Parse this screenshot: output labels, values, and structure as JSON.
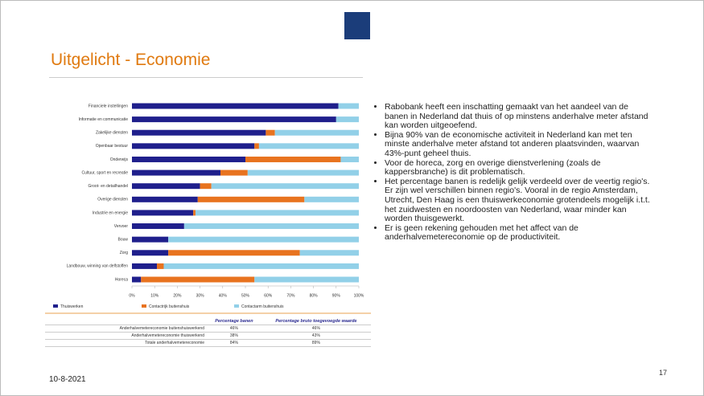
{
  "header": {
    "title": "Uitgelicht - Economie"
  },
  "chart_data": {
    "type": "bar",
    "orientation": "horizontal",
    "stacked": true,
    "categories": [
      "Financiele instellingen",
      "Informatie en communicatie",
      "Zakelijke diensten",
      "Openbaar bestuur",
      "Onderwijs",
      "Cultuur, sport en recreatie",
      "Groot- en detailhandel",
      "Overige diensten",
      "Industrie en energie",
      "Vervoer",
      "Bouw",
      "Zorg",
      "Landbouw, winning van delfstoffen",
      "Horeca"
    ],
    "series": [
      {
        "name": "Thuiswerken",
        "color": "#1f1f8c",
        "values": [
          91,
          90,
          59,
          54,
          50,
          39,
          30,
          29,
          27,
          23,
          16,
          16,
          11,
          4
        ]
      },
      {
        "name": "Contactrijk buitenshuis",
        "color": "#e8731f",
        "values": [
          0,
          0,
          4,
          2,
          42,
          12,
          5,
          47,
          1,
          0,
          0,
          58,
          3,
          50
        ]
      },
      {
        "name": "Contactarm buitenshuis",
        "color": "#92d0e8",
        "values": [
          9,
          10,
          37,
          44,
          8,
          49,
          65,
          24,
          72,
          77,
          84,
          26,
          86,
          46
        ]
      }
    ],
    "xlim": [
      0,
      100
    ],
    "xticks": [
      {
        "value": 0,
        "label": "0%"
      },
      {
        "value": 10,
        "label": "10%"
      },
      {
        "value": 20,
        "label": "20%"
      },
      {
        "value": 30,
        "label": "30%"
      },
      {
        "value": 40,
        "label": "40%"
      },
      {
        "value": 50,
        "label": "50%"
      },
      {
        "value": 60,
        "label": "60%"
      },
      {
        "value": 70,
        "label": "70%"
      },
      {
        "value": 80,
        "label": "80%"
      },
      {
        "value": 90,
        "label": "90%"
      },
      {
        "value": 100,
        "label": "100%"
      }
    ],
    "legend": "bottom"
  },
  "table": {
    "header": [
      "Percentage banen",
      "Percentage bruto toegevoegde waarde"
    ],
    "rows": [
      [
        "Anderhalvemetereconomie buitenshuiswerkend",
        "46%",
        "46%"
      ],
      [
        "Anderhalvemetereconomie thuiswerkend",
        "38%",
        "43%"
      ],
      [
        "Totale anderhalvemetereconomie",
        "84%",
        "89%"
      ]
    ]
  },
  "bullets": [
    "Rabobank heeft een inschatting gemaakt van het aandeel van de banen in Nederland dat thuis of op minstens anderhalve meter afstand kan worden uitgeoefend.",
    "Bijna 90% van de economische activiteit in Nederland kan met ten minste anderhalve meter afstand tot anderen plaatsvinden, waarvan 43%-punt geheel thuis.",
    "Voor de horeca, zorg en overige dienstverlening (zoals de kappersbranche) is dit problematisch.",
    "Het percentage banen is redelijk gelijk verdeeld over de veertig regio's. Er zijn wel verschillen binnen regio's. Vooral in de regio Amsterdam, Utrecht, Den Haag is een thuiswerkeconomie grotendeels mogelijk i.t.t. het zuidwesten en noordoosten van Nederland, waar minder kan worden thuisgewerkt.",
    "Er is geen rekening gehouden met het affect van de anderhalvemetereconomie op de productiviteit."
  ],
  "footer": {
    "date": "10-8-2021",
    "page": "17"
  }
}
